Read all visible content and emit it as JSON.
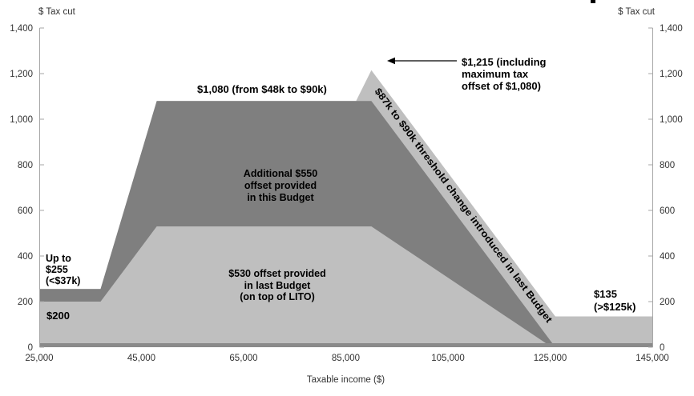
{
  "chart_data": {
    "type": "area",
    "title": "",
    "xlabel": "Taxable income ($)",
    "ylabel_left": "$ Tax cut",
    "ylabel_right": "$ Tax cut",
    "xlim": [
      25000,
      145000
    ],
    "ylim": [
      0,
      1400
    ],
    "x_tick_labels": [
      "25,000",
      "45,000",
      "65,000",
      "85,000",
      "105,000",
      "125,000",
      "145,000"
    ],
    "y_tick_labels": [
      "0",
      "200",
      "400",
      "600",
      "800",
      "1,000",
      "1,200",
      "1,400"
    ],
    "grid": false,
    "legend": "none (labels annotated inside areas)",
    "series": [
      {
        "id": "area-last-budget-offset",
        "name": "$530 offset provided in last Budget (on top of LITO)",
        "color": "#bfbfbf",
        "points": [
          [
            25000,
            200
          ],
          [
            37000,
            200
          ],
          [
            48000,
            530
          ],
          [
            90000,
            530
          ],
          [
            125333,
            0
          ]
        ]
      },
      {
        "id": "area-additional-offset-this-budget",
        "name": "Additional $550 offset provided in this Budget",
        "color": "#7f7f7f",
        "points": [
          [
            25000,
            255
          ],
          [
            37000,
            255
          ],
          [
            48000,
            1080
          ],
          [
            90000,
            1080
          ],
          [
            126000,
            0
          ]
        ]
      },
      {
        "id": "area-total-incl-threshold-change",
        "name": "Total tax cut including $87k to $90k threshold change introduced in last Budget",
        "color": "#bfbfbf",
        "points": [
          [
            25000,
            255
          ],
          [
            37000,
            255
          ],
          [
            48000,
            1080
          ],
          [
            87000,
            1080
          ],
          [
            90000,
            1215
          ],
          [
            126000,
            135
          ],
          [
            145000,
            135
          ]
        ]
      }
    ],
    "annotations": {
      "up_to_255": "Up to\n$255\n(<$37k)",
      "level_200": "$200",
      "plateau_1080": "$1,080 (from $48k to $90k)",
      "additional_550": "Additional $550\noffset provided\nin this Budget",
      "offset_530": "$530 offset provided\nin last Budget\n(on top of LITO)",
      "peak_1215": "$1,215 (including\nmaximum tax\noffset of $1,080)",
      "tail_135": "$135\n(>$125k)",
      "threshold_change": "$87k to $90k threshold change introduced in last Budget"
    },
    "key_values": {
      "max_offset": 1080,
      "peak_total_tax_cut": 1215,
      "threshold_change_amount": 135,
      "base_at_low_income": 200,
      "total_at_low_income": 255,
      "last_budget_max": 530,
      "additional_max": 550
    }
  },
  "colors": {
    "light_gray_area": "#bfbfbf",
    "dark_gray_area": "#7f7f7f",
    "axis_line": "#a6a6a6",
    "x_axis_band": "#8a8a8a",
    "annotation_text": "#000000"
  }
}
